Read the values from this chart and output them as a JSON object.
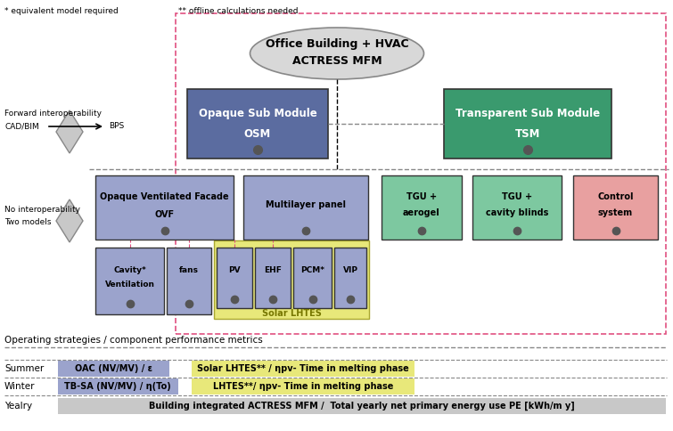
{
  "title_note1": "* equivalent model required",
  "title_note2": "** offline calculations needed",
  "ellipse_text1": "Office Building + HVAC",
  "ellipse_text2": "ACTRESS MFM",
  "op_strategies": "Operating strategies / component performance metrics",
  "summer_label": "Summer",
  "winter_label": "Winter",
  "yearly_label": "Yealry",
  "summer_box1_text": "OAC (NV/MV) / ε",
  "summer_box2_text": "Solar LHTES** / ηpv- Time in melting phase",
  "winter_box1_text": "TB-SA (NV/MV) / η(To)",
  "winter_box2_text": "LHTES**/ ηpv- Time in melting phase",
  "yearly_box_text": "Building integrated ACTRESS MFM /  Total yearly net primary energy use PE [kWh/m y]",
  "color_blue_dark": "#5b6ca0",
  "color_blue_light": "#9ba3cc",
  "color_green_dark": "#3a9a6e",
  "color_green_light": "#7dc8a0",
  "color_yellow": "#e8e87a",
  "color_pink": "#e8a0a0",
  "color_gray": "#c8c8c8",
  "color_ellipse": "#d8d8d8",
  "color_dashed_pink": "#e05080"
}
